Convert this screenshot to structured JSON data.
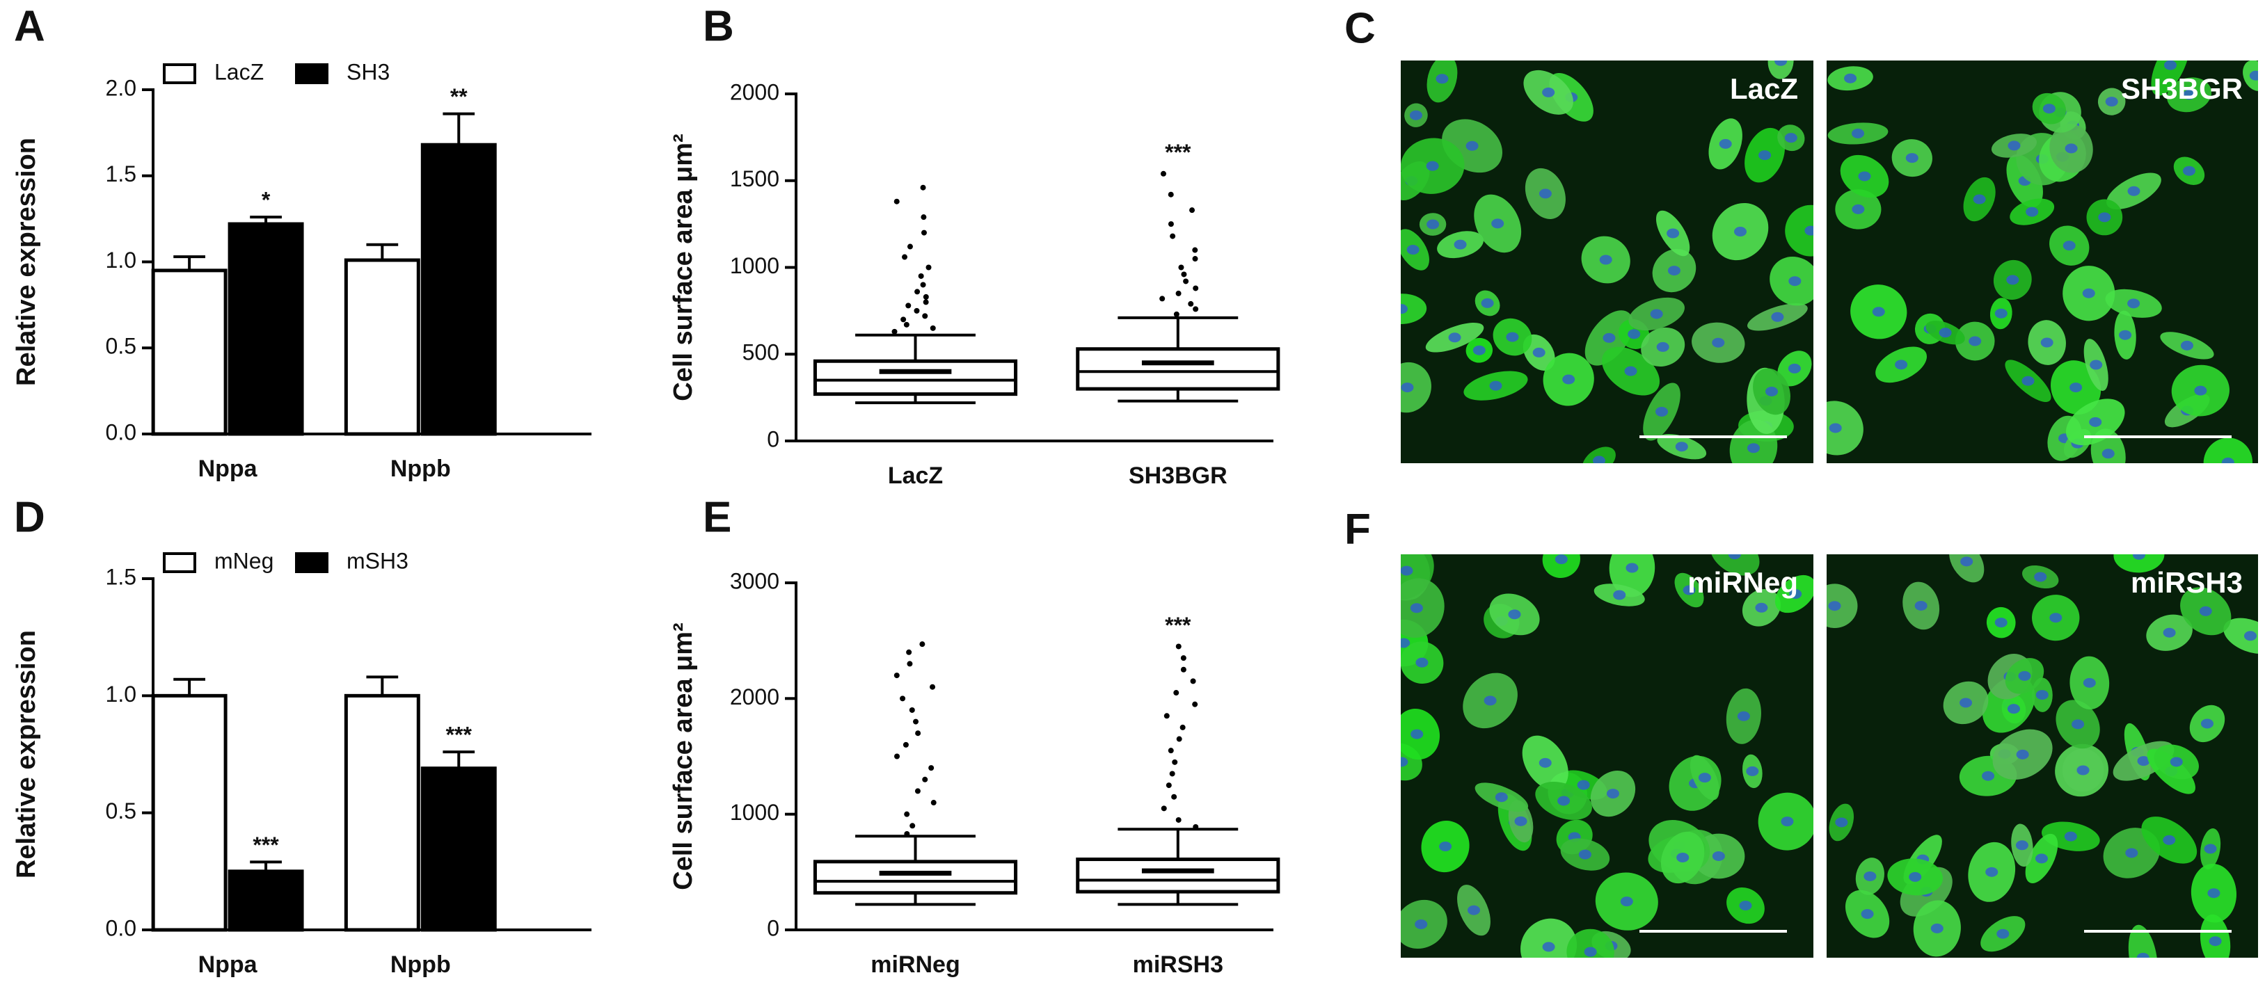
{
  "chart_data": [
    {
      "type": "bar",
      "panel_label": "A",
      "ylabel": "Relative expression",
      "categories": [
        "Nppa",
        "Nppb"
      ],
      "series": [
        {
          "name": "LacZ",
          "color": "#ffffff",
          "values": [
            0.95,
            1.01
          ],
          "errors": [
            0.08,
            0.09
          ]
        },
        {
          "name": "SH3",
          "color": "#000000",
          "values": [
            1.22,
            1.68
          ],
          "errors": [
            0.04,
            0.18
          ],
          "annotations": [
            "*",
            "**"
          ]
        }
      ],
      "ylim": [
        0,
        2
      ],
      "yticks": [
        {
          "value": 0,
          "label": "0.0"
        },
        0.5,
        {
          "value": 1,
          "label": "1.0"
        },
        1.5,
        {
          "value": 2,
          "label": "2.0"
        }
      ],
      "legend": "top"
    },
    {
      "type": "box",
      "panel_label": "B",
      "ylabel": "Cell surface area μm²",
      "categories": [
        "LacZ",
        "SH3BGR"
      ],
      "boxes": [
        {
          "whislo": 220,
          "q1": 270,
          "med": 350,
          "q3": 460,
          "whishi": 610,
          "mean": 400,
          "outliers": [
            630,
            650,
            670,
            700,
            720,
            750,
            780,
            800,
            830,
            860,
            900,
            950,
            1000,
            1060,
            1120,
            1200,
            1290,
            1380,
            1460
          ]
        },
        {
          "whislo": 230,
          "q1": 300,
          "med": 400,
          "q3": 530,
          "whishi": 710,
          "mean": 450,
          "outliers": [
            730,
            760,
            790,
            820,
            850,
            880,
            920,
            960,
            1000,
            1050,
            1100,
            1180,
            1250,
            1330,
            1420,
            1540
          ],
          "annotation": "***"
        }
      ],
      "ylim": [
        0,
        2000
      ],
      "yticks": [
        0,
        500,
        1000,
        1500,
        2000
      ]
    },
    {
      "type": "bar",
      "panel_label": "D",
      "ylabel": "Relative expression",
      "categories": [
        "Nppa",
        "Nppb"
      ],
      "series": [
        {
          "name": "mNeg",
          "color": "#ffffff",
          "values": [
            1.0,
            1.0
          ],
          "errors": [
            0.07,
            0.08
          ]
        },
        {
          "name": "mSH3",
          "color": "#000000",
          "values": [
            0.25,
            0.69
          ],
          "errors": [
            0.04,
            0.07
          ],
          "annotations": [
            "***",
            "***"
          ]
        }
      ],
      "ylim": [
        0,
        1.5
      ],
      "yticks": [
        {
          "value": 0,
          "label": "0.0"
        },
        0.5,
        {
          "value": 1,
          "label": "1.0"
        },
        1.5
      ],
      "legend": "top"
    },
    {
      "type": "box",
      "panel_label": "E",
      "ylabel": "Cell surface area μm²",
      "categories": [
        "miRNeg",
        "miRSH3"
      ],
      "boxes": [
        {
          "whislo": 220,
          "q1": 320,
          "med": 420,
          "q3": 590,
          "whishi": 810,
          "mean": 490,
          "outliers": [
            830,
            900,
            1000,
            1100,
            1200,
            1300,
            1400,
            1500,
            1600,
            1700,
            1800,
            1900,
            2000,
            2100,
            2200,
            2300,
            2400,
            2470
          ]
        },
        {
          "whislo": 220,
          "q1": 330,
          "med": 430,
          "q3": 610,
          "whishi": 870,
          "mean": 510,
          "outliers": [
            890,
            950,
            1050,
            1150,
            1250,
            1350,
            1450,
            1550,
            1650,
            1750,
            1850,
            1950,
            2050,
            2150,
            2250,
            2350,
            2450
          ],
          "annotation": "***"
        }
      ],
      "ylim": [
        0,
        3000
      ],
      "yticks": [
        0,
        1000,
        2000,
        3000
      ]
    }
  ],
  "image_panels": [
    {
      "panel_label": "C",
      "images": [
        "LacZ",
        "SH3BGR"
      ]
    },
    {
      "panel_label": "F",
      "images": [
        "miRNeg",
        "miRSH3"
      ]
    }
  ]
}
